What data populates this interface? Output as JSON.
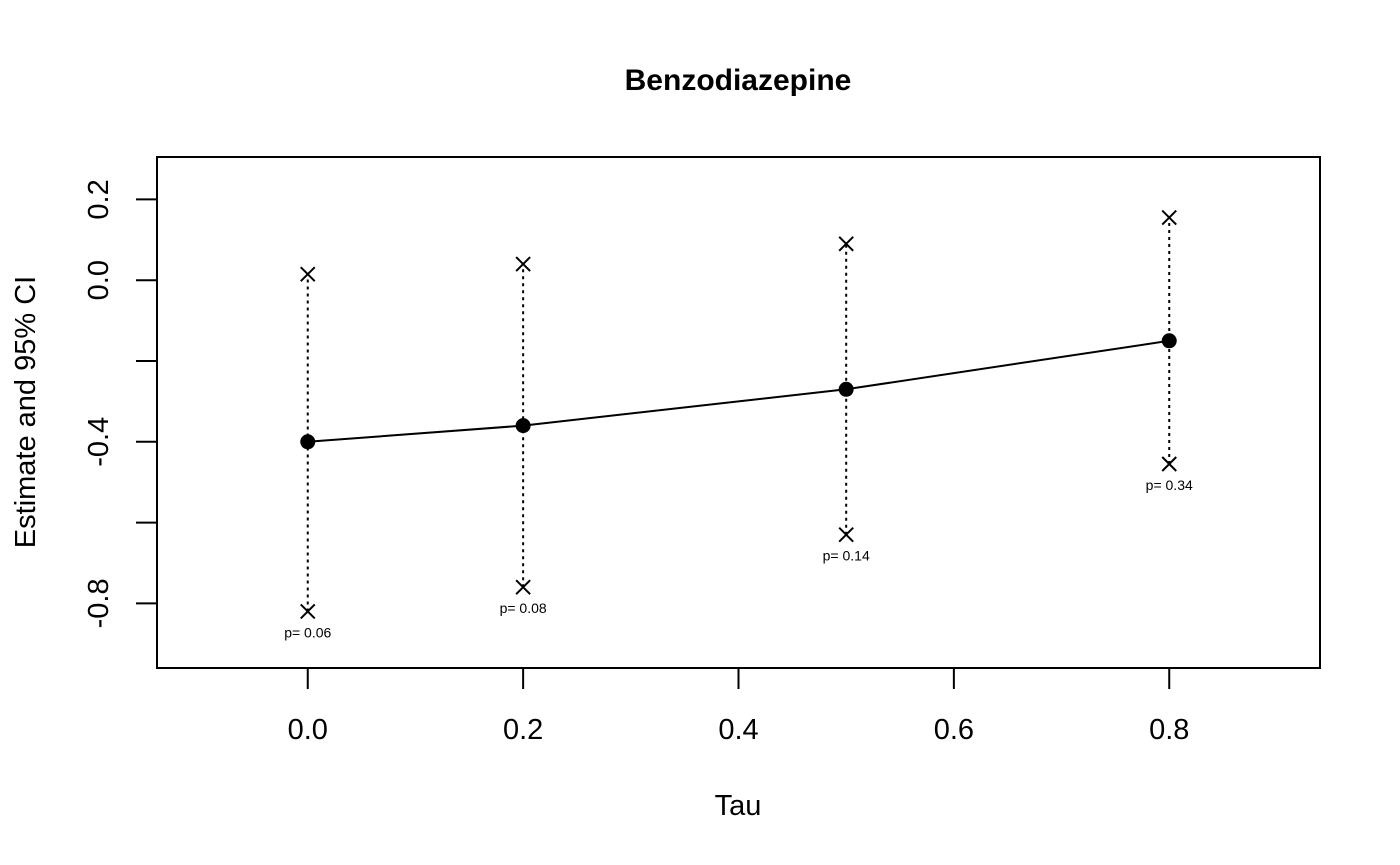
{
  "chart_data": {
    "type": "line",
    "title": "Benzodiazepine",
    "xlabel": "Tau",
    "ylabel": "Estimate and 95% CI",
    "xlim": [
      -0.14,
      0.94
    ],
    "ylim": [
      -0.96,
      0.305
    ],
    "x_ticks": [
      0.0,
      0.2,
      0.4,
      0.6,
      0.8
    ],
    "x_tick_labels": [
      "0.0",
      "0.2",
      "0.4",
      "0.6",
      "0.8"
    ],
    "y_ticks": [
      -0.8,
      -0.6,
      -0.4,
      -0.2,
      0.0,
      0.2
    ],
    "y_tick_labels": [
      "-0.8",
      "",
      "-0.4",
      "",
      "0.0",
      "0.2"
    ],
    "grid": false,
    "legend": "none",
    "series": [
      {
        "x": [
          0.0,
          0.2,
          0.5,
          0.8
        ],
        "estimate": [
          -0.4,
          -0.36,
          -0.27,
          -0.15
        ],
        "lower": [
          -0.82,
          -0.76,
          -0.63,
          -0.455
        ],
        "upper": [
          0.015,
          0.04,
          0.09,
          0.155
        ],
        "p_labels": [
          "p= 0.06",
          "p= 0.08",
          "p= 0.14",
          "p= 0.34"
        ]
      }
    ]
  }
}
